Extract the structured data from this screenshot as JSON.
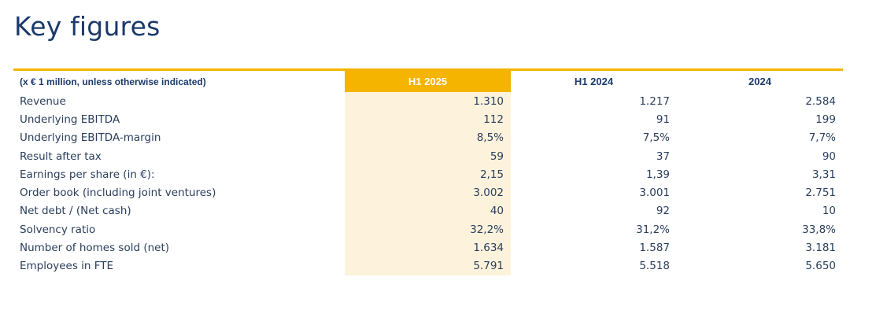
{
  "page": {
    "title": "Key figures"
  },
  "table": {
    "unit_note": "(x € 1 million, unless otherwise indicated)",
    "columns": [
      "H1 2025",
      "H1 2024",
      "2024"
    ],
    "highlight_color": "#f5b400",
    "highlight_fill": "#fdf3dc",
    "rows": [
      {
        "label": "Revenue",
        "values": [
          "1.310",
          "1.217",
          "2.584"
        ]
      },
      {
        "label": "Underlying EBITDA",
        "values": [
          "112",
          "91",
          "199"
        ]
      },
      {
        "label": "Underlying EBITDA-margin",
        "values": [
          "8,5%",
          "7,5%",
          "7,7%"
        ]
      },
      {
        "label": "Result after tax",
        "values": [
          "59",
          "37",
          "90"
        ]
      },
      {
        "label": "Earnings per share (in €):",
        "values": [
          "2,15",
          "1,39",
          "3,31"
        ]
      },
      {
        "label": "Order book (including joint ventures)",
        "values": [
          "3.002",
          "3.001",
          "2.751"
        ]
      },
      {
        "label": "Net debt / (Net cash)",
        "values": [
          "40",
          "92",
          "10"
        ]
      },
      {
        "label": "Solvency ratio",
        "values": [
          "32,2%",
          "31,2%",
          "33,8%"
        ]
      },
      {
        "label": "Number of homes sold (net)",
        "values": [
          "1.634",
          "1.587",
          "3.181"
        ]
      },
      {
        "label": "Employees in FTE",
        "values": [
          "5.791",
          "5.518",
          "5.650"
        ]
      }
    ]
  }
}
